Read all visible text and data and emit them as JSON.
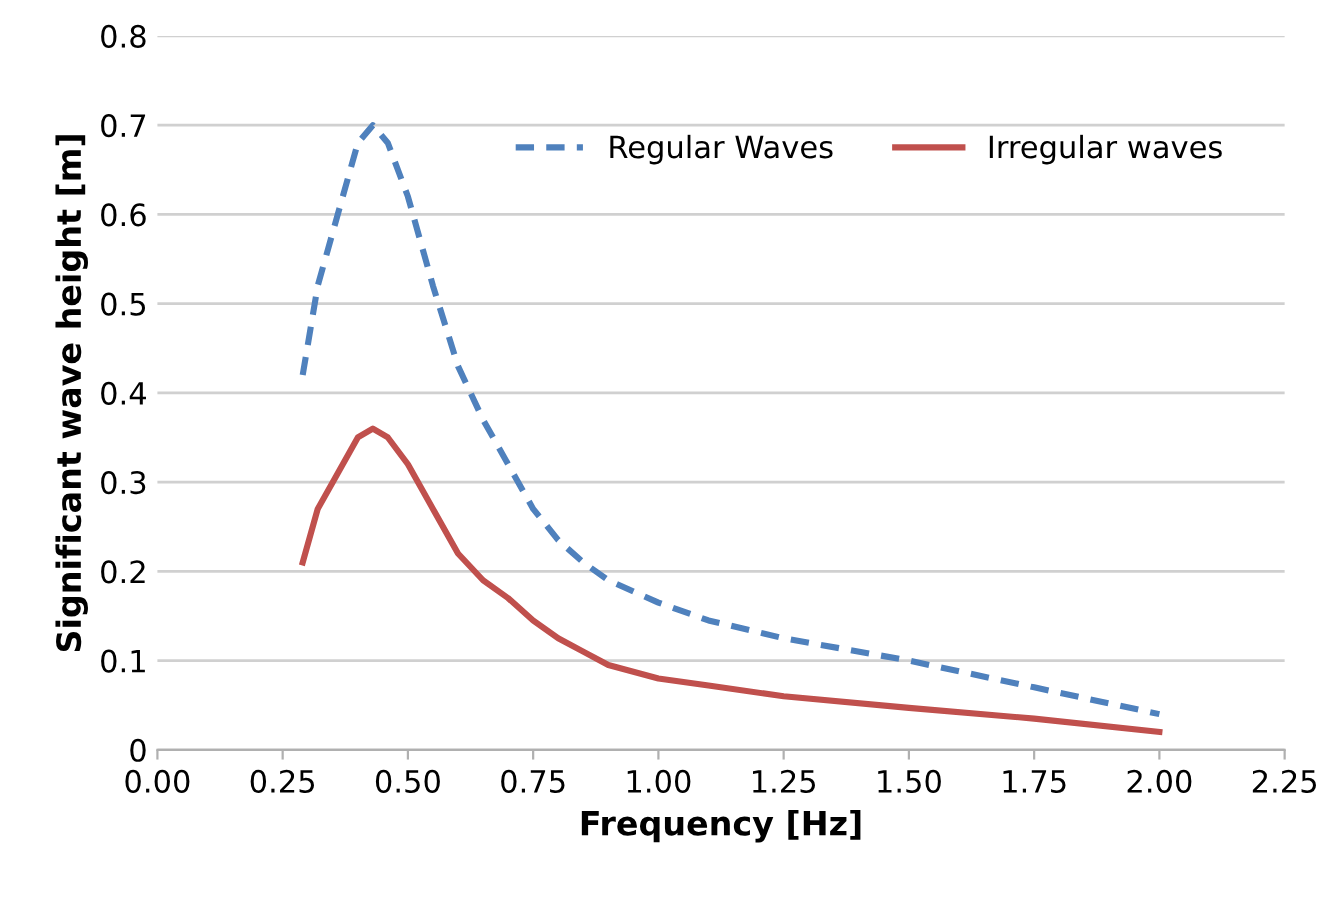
{
  "chart_data": {
    "type": "line",
    "xlabel": "Frequency [Hz]",
    "ylabel": "Significant wave height [m]",
    "xlim": [
      0,
      2.25
    ],
    "xticks": [
      {
        "value": 0,
        "label": "0.00"
      },
      {
        "value": 0.25,
        "label": "0.25"
      },
      {
        "value": 0.5,
        "label": "0.50"
      },
      {
        "value": 0.75,
        "label": "0.75"
      },
      {
        "value": 1,
        "label": "1.00"
      },
      {
        "value": 1.25,
        "label": "1.25"
      },
      {
        "value": 1.5,
        "label": "1.50"
      },
      {
        "value": 1.75,
        "label": "1.75"
      },
      {
        "value": 2,
        "label": "2.00"
      },
      {
        "value": 2.25,
        "label": "2.25"
      }
    ],
    "ylim": [
      0,
      0.8
    ],
    "yticks": [
      0,
      0.1,
      0.2,
      0.3,
      0.4,
      0.5,
      0.6,
      0.7,
      0.8
    ],
    "grid": "y",
    "legend": "top right",
    "marker": "none",
    "x": [
      0.29,
      0.32,
      0.36,
      0.4,
      0.43,
      0.46,
      0.5,
      0.55,
      0.6,
      0.65,
      0.7,
      0.75,
      0.8,
      0.85,
      0.9,
      1.0,
      1.1,
      1.25,
      1.5,
      1.75,
      2.0
    ],
    "series": [
      {
        "name": "Regular Waves",
        "color": "#4f81bd",
        "line_style": "dashed",
        "values": [
          0.42,
          0.52,
          0.6,
          0.68,
          0.7,
          0.68,
          0.62,
          0.52,
          0.43,
          0.37,
          0.32,
          0.27,
          0.235,
          0.21,
          0.19,
          0.165,
          0.145,
          0.125,
          0.1,
          0.07,
          0.04
        ]
      },
      {
        "name": "Irregular waves",
        "color": "#c0504d",
        "line_style": "solid",
        "values": [
          0.21,
          0.27,
          0.31,
          0.35,
          0.36,
          0.35,
          0.32,
          0.27,
          0.22,
          0.19,
          0.17,
          0.145,
          0.125,
          0.11,
          0.095,
          0.08,
          0.072,
          0.06,
          0.047,
          0.035,
          0.02
        ]
      }
    ]
  }
}
